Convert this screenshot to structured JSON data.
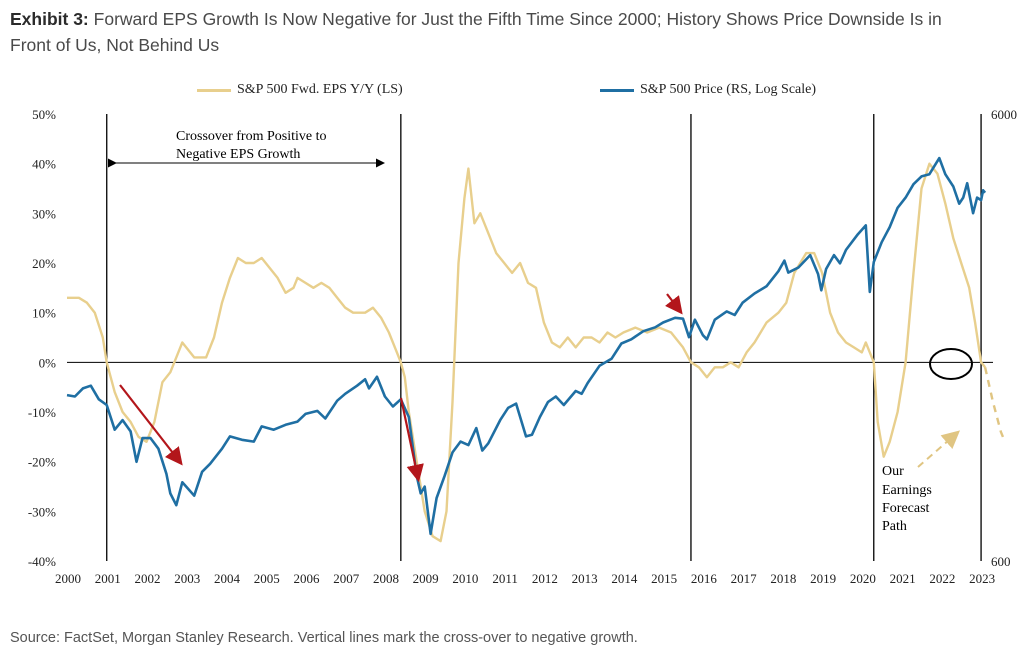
{
  "header": {
    "exhibit_label": "Exhibit 3:",
    "title_line1": "Forward EPS Growth Is Now Negative for Just the Fifth Time Since 2000; History Shows Price Downside Is in",
    "title_line2": "Front of Us, Not Behind Us"
  },
  "footer": {
    "source": "Source: FactSet, Morgan Stanley Research. Vertical lines mark the cross-over to negative growth."
  },
  "colors": {
    "eps": "#e8cf8d",
    "price": "#1f6fa3",
    "arrow": "#b3161b",
    "forecast": "#e0c582",
    "axis": "#000000"
  },
  "chart_data": {
    "type": "line",
    "legend": [
      {
        "label": "S&P 500 Fwd. EPS Y/Y (LS)",
        "color": "#e8cf8d"
      },
      {
        "label": "S&P 500 Price (RS, Log Scale)",
        "color": "#1f6fa3"
      }
    ],
    "x_ticks": [
      "2000",
      "2001",
      "2002",
      "2003",
      "2004",
      "2005",
      "2006",
      "2007",
      "2008",
      "2009",
      "2010",
      "2011",
      "2012",
      "2013",
      "2014",
      "2015",
      "2016",
      "2017",
      "2018",
      "2019",
      "2020",
      "2021",
      "2022",
      "2023"
    ],
    "y_left": {
      "ticks": [
        "50%",
        "40%",
        "30%",
        "20%",
        "10%",
        "0%",
        "-10%",
        "-20%",
        "-30%",
        "-40%"
      ],
      "range": [
        -40,
        50
      ],
      "unit": "%"
    },
    "y_right": {
      "ticks": [
        "6000",
        "600"
      ],
      "range": [
        600,
        6000
      ],
      "scale": "log"
    },
    "crossover_lines": [
      2001.0,
      2008.4,
      2015.7,
      2020.3,
      2023.0
    ],
    "annotations": {
      "crossover": [
        "Crossover from Positive to",
        "Negative EPS Growth"
      ],
      "forecast": [
        "Our",
        "Earnings",
        "Forecast",
        "Path"
      ]
    },
    "series": [
      {
        "name": "S&P 500 Fwd. EPS Y/Y (LS)",
        "axis": "left",
        "points": [
          [
            2000.0,
            13
          ],
          [
            2000.3,
            13
          ],
          [
            2000.5,
            12
          ],
          [
            2000.7,
            10
          ],
          [
            2000.9,
            5
          ],
          [
            2001.0,
            0
          ],
          [
            2001.2,
            -6
          ],
          [
            2001.4,
            -10
          ],
          [
            2001.6,
            -12
          ],
          [
            2001.8,
            -15
          ],
          [
            2002.0,
            -16
          ],
          [
            2002.2,
            -12
          ],
          [
            2002.4,
            -4
          ],
          [
            2002.6,
            -2
          ],
          [
            2002.8,
            2
          ],
          [
            2002.9,
            4
          ],
          [
            2003.0,
            3
          ],
          [
            2003.2,
            1
          ],
          [
            2003.5,
            1
          ],
          [
            2003.7,
            5
          ],
          [
            2003.9,
            12
          ],
          [
            2004.1,
            17
          ],
          [
            2004.3,
            21
          ],
          [
            2004.5,
            20
          ],
          [
            2004.7,
            20
          ],
          [
            2004.9,
            21
          ],
          [
            2005.1,
            19
          ],
          [
            2005.3,
            17
          ],
          [
            2005.5,
            14
          ],
          [
            2005.7,
            15
          ],
          [
            2005.8,
            17
          ],
          [
            2006.0,
            16
          ],
          [
            2006.2,
            15
          ],
          [
            2006.4,
            16
          ],
          [
            2006.6,
            15
          ],
          [
            2006.8,
            13
          ],
          [
            2007.0,
            11
          ],
          [
            2007.2,
            10
          ],
          [
            2007.5,
            10
          ],
          [
            2007.7,
            11
          ],
          [
            2007.9,
            9
          ],
          [
            2008.1,
            6
          ],
          [
            2008.3,
            2
          ],
          [
            2008.4,
            0
          ],
          [
            2008.5,
            -3
          ],
          [
            2008.6,
            -10
          ],
          [
            2008.8,
            -20
          ],
          [
            2009.0,
            -30
          ],
          [
            2009.2,
            -35
          ],
          [
            2009.4,
            -36
          ],
          [
            2009.55,
            -30
          ],
          [
            2009.7,
            -8
          ],
          [
            2009.85,
            20
          ],
          [
            2010.0,
            33
          ],
          [
            2010.1,
            39
          ],
          [
            2010.25,
            28
          ],
          [
            2010.4,
            30
          ],
          [
            2010.6,
            26
          ],
          [
            2010.8,
            22
          ],
          [
            2011.0,
            20
          ],
          [
            2011.2,
            18
          ],
          [
            2011.4,
            20
          ],
          [
            2011.6,
            16
          ],
          [
            2011.8,
            15
          ],
          [
            2012.0,
            8
          ],
          [
            2012.2,
            4
          ],
          [
            2012.4,
            3
          ],
          [
            2012.6,
            5
          ],
          [
            2012.8,
            3
          ],
          [
            2013.0,
            5
          ],
          [
            2013.2,
            5
          ],
          [
            2013.4,
            4
          ],
          [
            2013.6,
            6
          ],
          [
            2013.8,
            5
          ],
          [
            2014.0,
            6
          ],
          [
            2014.3,
            7
          ],
          [
            2014.6,
            6
          ],
          [
            2014.9,
            7
          ],
          [
            2015.2,
            6
          ],
          [
            2015.5,
            3
          ],
          [
            2015.7,
            0
          ],
          [
            2015.9,
            -1
          ],
          [
            2016.1,
            -3
          ],
          [
            2016.3,
            -1
          ],
          [
            2016.5,
            -1
          ],
          [
            2016.7,
            0
          ],
          [
            2016.9,
            -1
          ],
          [
            2017.1,
            2
          ],
          [
            2017.3,
            4
          ],
          [
            2017.6,
            8
          ],
          [
            2017.9,
            10
          ],
          [
            2018.1,
            12
          ],
          [
            2018.3,
            18
          ],
          [
            2018.6,
            22
          ],
          [
            2018.8,
            22
          ],
          [
            2019.0,
            18
          ],
          [
            2019.2,
            10
          ],
          [
            2019.4,
            6
          ],
          [
            2019.6,
            4
          ],
          [
            2019.8,
            3
          ],
          [
            2020.0,
            2
          ],
          [
            2020.1,
            4
          ],
          [
            2020.2,
            2
          ],
          [
            2020.3,
            0
          ],
          [
            2020.4,
            -12
          ],
          [
            2020.55,
            -19
          ],
          [
            2020.7,
            -16
          ],
          [
            2020.9,
            -10
          ],
          [
            2021.1,
            0
          ],
          [
            2021.3,
            18
          ],
          [
            2021.5,
            35
          ],
          [
            2021.7,
            40
          ],
          [
            2021.9,
            38
          ],
          [
            2022.1,
            32
          ],
          [
            2022.3,
            25
          ],
          [
            2022.5,
            20
          ],
          [
            2022.7,
            15
          ],
          [
            2022.85,
            8
          ],
          [
            2023.0,
            0
          ],
          [
            2023.1,
            -1
          ]
        ]
      },
      {
        "name": "S&P 500 Price (RS, Log Scale)",
        "axis": "right",
        "points": [
          [
            2000.0,
            1410
          ],
          [
            2000.2,
            1400
          ],
          [
            2000.4,
            1460
          ],
          [
            2000.6,
            1480
          ],
          [
            2000.8,
            1380
          ],
          [
            2001.0,
            1340
          ],
          [
            2001.2,
            1180
          ],
          [
            2001.4,
            1240
          ],
          [
            2001.6,
            1170
          ],
          [
            2001.75,
            1000
          ],
          [
            2001.9,
            1130
          ],
          [
            2002.1,
            1130
          ],
          [
            2002.3,
            1070
          ],
          [
            2002.5,
            940
          ],
          [
            2002.6,
            850
          ],
          [
            2002.75,
            800
          ],
          [
            2002.9,
            900
          ],
          [
            2003.0,
            880
          ],
          [
            2003.2,
            840
          ],
          [
            2003.4,
            950
          ],
          [
            2003.6,
            990
          ],
          [
            2003.9,
            1070
          ],
          [
            2004.1,
            1140
          ],
          [
            2004.4,
            1120
          ],
          [
            2004.7,
            1110
          ],
          [
            2004.9,
            1200
          ],
          [
            2005.2,
            1180
          ],
          [
            2005.5,
            1210
          ],
          [
            2005.8,
            1230
          ],
          [
            2006.0,
            1280
          ],
          [
            2006.3,
            1300
          ],
          [
            2006.5,
            1250
          ],
          [
            2006.8,
            1370
          ],
          [
            2007.0,
            1420
          ],
          [
            2007.3,
            1480
          ],
          [
            2007.5,
            1530
          ],
          [
            2007.6,
            1460
          ],
          [
            2007.8,
            1550
          ],
          [
            2008.0,
            1400
          ],
          [
            2008.2,
            1330
          ],
          [
            2008.4,
            1380
          ],
          [
            2008.6,
            1260
          ],
          [
            2008.8,
            930
          ],
          [
            2008.9,
            850
          ],
          [
            2009.0,
            880
          ],
          [
            2009.15,
            690
          ],
          [
            2009.3,
            830
          ],
          [
            2009.5,
            930
          ],
          [
            2009.7,
            1050
          ],
          [
            2009.9,
            1110
          ],
          [
            2010.1,
            1090
          ],
          [
            2010.3,
            1190
          ],
          [
            2010.45,
            1060
          ],
          [
            2010.6,
            1100
          ],
          [
            2010.9,
            1240
          ],
          [
            2011.1,
            1320
          ],
          [
            2011.3,
            1350
          ],
          [
            2011.55,
            1140
          ],
          [
            2011.7,
            1150
          ],
          [
            2011.9,
            1260
          ],
          [
            2012.1,
            1360
          ],
          [
            2012.3,
            1400
          ],
          [
            2012.5,
            1340
          ],
          [
            2012.8,
            1440
          ],
          [
            2012.95,
            1420
          ],
          [
            2013.1,
            1500
          ],
          [
            2013.4,
            1640
          ],
          [
            2013.7,
            1700
          ],
          [
            2013.95,
            1840
          ],
          [
            2014.2,
            1880
          ],
          [
            2014.5,
            1960
          ],
          [
            2014.8,
            2000
          ],
          [
            2015.0,
            2050
          ],
          [
            2015.3,
            2100
          ],
          [
            2015.5,
            2090
          ],
          [
            2015.65,
            1900
          ],
          [
            2015.8,
            2080
          ],
          [
            2016.0,
            1920
          ],
          [
            2016.1,
            1880
          ],
          [
            2016.3,
            2080
          ],
          [
            2016.6,
            2170
          ],
          [
            2016.8,
            2130
          ],
          [
            2017.0,
            2270
          ],
          [
            2017.3,
            2380
          ],
          [
            2017.6,
            2470
          ],
          [
            2017.9,
            2670
          ],
          [
            2018.05,
            2820
          ],
          [
            2018.15,
            2650
          ],
          [
            2018.4,
            2720
          ],
          [
            2018.7,
            2900
          ],
          [
            2018.9,
            2630
          ],
          [
            2018.98,
            2420
          ],
          [
            2019.1,
            2700
          ],
          [
            2019.3,
            2900
          ],
          [
            2019.45,
            2780
          ],
          [
            2019.6,
            2980
          ],
          [
            2019.9,
            3230
          ],
          [
            2020.1,
            3380
          ],
          [
            2020.2,
            2400
          ],
          [
            2020.3,
            2800
          ],
          [
            2020.5,
            3100
          ],
          [
            2020.7,
            3350
          ],
          [
            2020.9,
            3700
          ],
          [
            2021.1,
            3900
          ],
          [
            2021.3,
            4180
          ],
          [
            2021.5,
            4350
          ],
          [
            2021.7,
            4400
          ],
          [
            2021.95,
            4780
          ],
          [
            2022.1,
            4400
          ],
          [
            2022.3,
            4130
          ],
          [
            2022.45,
            3780
          ],
          [
            2022.55,
            3900
          ],
          [
            2022.65,
            4200
          ],
          [
            2022.8,
            3600
          ],
          [
            2022.9,
            3900
          ],
          [
            2023.0,
            3850
          ],
          [
            2023.05,
            4050
          ],
          [
            2023.1,
            4000
          ]
        ]
      },
      {
        "name": "Our Earnings Forecast Path",
        "axis": "left",
        "style": "dashed",
        "points": [
          [
            2023.1,
            -1
          ],
          [
            2023.3,
            -8
          ],
          [
            2023.5,
            -14
          ],
          [
            2023.6,
            -16
          ]
        ]
      }
    ]
  }
}
